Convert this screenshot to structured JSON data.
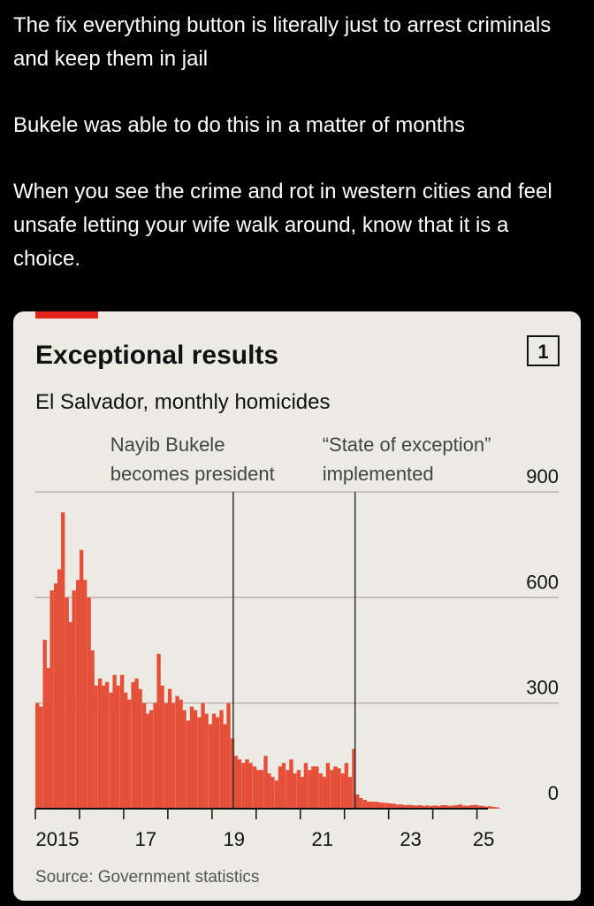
{
  "post": {
    "paragraphs": [
      "The fix everything button is literally just to arrest criminals and keep them in jail",
      "Bukele was able to do this in a matter of months",
      "When you see the crime and rot in western cities and feel  unsafe letting your wife walk around, know that it is a choice."
    ]
  },
  "chart_data": {
    "type": "bar",
    "title": "Exceptional results",
    "badge": "1",
    "subtitle": "El Salvador, monthly homicides",
    "source": "Source: Government statistics",
    "color": "#e5503b",
    "grid": true,
    "x": [
      2015,
      2015.08,
      2015.17,
      2015.25,
      2015.33,
      2015.42,
      2015.5,
      2015.58,
      2015.67,
      2015.75,
      2015.83,
      2015.92,
      2016,
      2016.08,
      2016.17,
      2016.25,
      2016.33,
      2016.42,
      2016.5,
      2016.58,
      2016.67,
      2016.75,
      2016.83,
      2016.92,
      2017,
      2017.08,
      2017.17,
      2017.25,
      2017.33,
      2017.42,
      2017.5,
      2017.58,
      2017.67,
      2017.75,
      2017.83,
      2017.92,
      2018,
      2018.08,
      2018.17,
      2018.25,
      2018.33,
      2018.42,
      2018.5,
      2018.58,
      2018.67,
      2018.75,
      2018.83,
      2018.92,
      2019,
      2019.08,
      2019.17,
      2019.25,
      2019.33,
      2019.42,
      2019.5,
      2019.58,
      2019.67,
      2019.75,
      2019.83,
      2019.92,
      2020,
      2020.08,
      2020.17,
      2020.25,
      2020.33,
      2020.42,
      2020.5,
      2020.58,
      2020.67,
      2020.75,
      2020.83,
      2020.92,
      2021,
      2021.08,
      2021.17,
      2021.25,
      2021.33,
      2021.42,
      2021.5,
      2021.58,
      2021.67,
      2021.75,
      2021.83,
      2021.92,
      2022,
      2022.08,
      2022.17,
      2022.25,
      2022.33,
      2022.42,
      2022.5,
      2022.58,
      2022.67,
      2022.75,
      2022.83,
      2022.92,
      2023,
      2023.08,
      2023.17,
      2023.25,
      2023.33,
      2023.42,
      2023.5,
      2023.58,
      2023.67,
      2023.75,
      2023.83,
      2023.92,
      2024,
      2024.08,
      2024.17,
      2024.25,
      2024.33,
      2024.42,
      2024.5,
      2024.58,
      2024.67,
      2024.75,
      2024.83,
      2024.92,
      2025,
      2025.08,
      2025.17,
      2025.25,
      2025.33,
      2025.42
    ],
    "values": [
      300,
      290,
      480,
      400,
      620,
      640,
      680,
      842,
      600,
      530,
      620,
      650,
      735,
      650,
      600,
      450,
      350,
      370,
      350,
      360,
      330,
      380,
      350,
      380,
      330,
      310,
      360,
      370,
      340,
      300,
      270,
      280,
      300,
      440,
      350,
      300,
      340,
      300,
      320,
      310,
      280,
      250,
      290,
      280,
      260,
      300,
      270,
      240,
      270,
      260,
      280,
      240,
      300,
      200,
      150,
      140,
      130,
      140,
      130,
      120,
      110,
      110,
      150,
      100,
      90,
      80,
      120,
      130,
      110,
      140,
      100,
      110,
      90,
      130,
      110,
      120,
      120,
      100,
      90,
      130,
      110,
      120,
      115,
      100,
      130,
      90,
      170,
      40,
      30,
      25,
      20,
      20,
      20,
      18,
      17,
      16,
      15,
      14,
      12,
      12,
      10,
      11,
      10,
      9,
      10,
      8,
      9,
      8,
      9,
      8,
      10,
      10,
      8,
      9,
      10,
      12,
      9,
      8,
      10,
      11,
      9,
      8,
      6,
      7,
      5,
      4
    ],
    "xlim": [
      2015,
      2026.85
    ],
    "ylim": [
      0,
      900
    ],
    "yticks": [
      0,
      300,
      600,
      900
    ],
    "xticks": [
      {
        "value": 2015.5,
        "label": "2015"
      },
      {
        "value": 2017.5,
        "label": "17"
      },
      {
        "value": 2019.5,
        "label": "19"
      },
      {
        "value": 2021.5,
        "label": "21"
      },
      {
        "value": 2023.5,
        "label": "23"
      },
      {
        "value": 2025.15,
        "label": "25"
      }
    ],
    "xtick_marks": [
      2015,
      2016,
      2017,
      2018,
      2019,
      2020,
      2021,
      2022,
      2023,
      2024,
      2025
    ],
    "annotations": [
      {
        "lines": [
          "Nayib Bukele",
          "becomes president"
        ],
        "x": 2019.48
      },
      {
        "lines": [
          "“State of exception”",
          "implemented"
        ],
        "x": 2022.24
      }
    ]
  }
}
